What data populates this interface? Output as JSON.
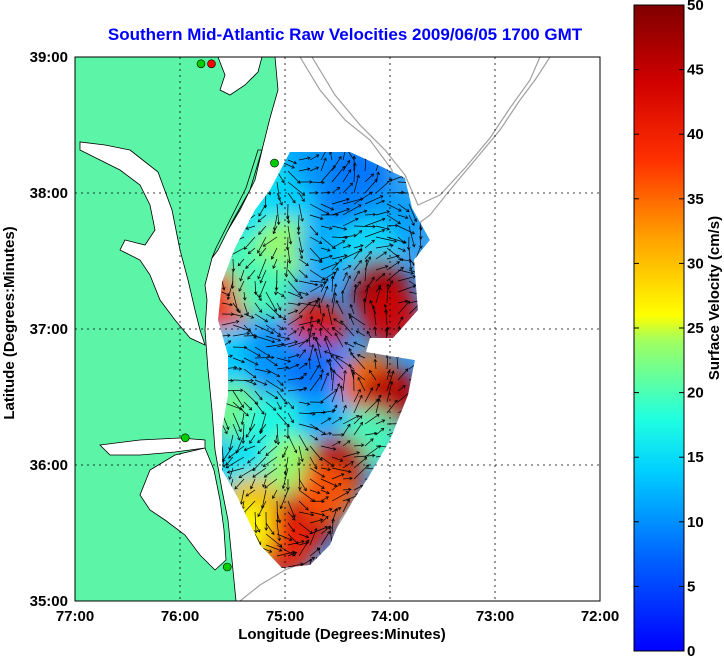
{
  "chart_data": {
    "type": "heatmap",
    "title": "Southern Mid-Atlantic Raw Velocities 2009/06/05 1700 GMT",
    "xlabel": "Longitude (Degrees:Minutes)",
    "ylabel": "Latitude (Degrees:Minutes)",
    "x_ticks": [
      "77:00",
      "76:00",
      "75:00",
      "74:00",
      "73:00",
      "72:00"
    ],
    "y_ticks": [
      "39:00",
      "38:00",
      "37:00",
      "36:00",
      "35:00"
    ],
    "xlim": [
      -77,
      -72
    ],
    "ylim": [
      35,
      39
    ],
    "grid": true,
    "colorbar": {
      "label": "Surface Velocity (cm/s)",
      "min": 0,
      "max": 50,
      "ticks": [
        "0",
        "5",
        "10",
        "15",
        "20",
        "25",
        "30",
        "35",
        "40",
        "45",
        "50"
      ],
      "colormap": [
        "#0000ff",
        "#0080ff",
        "#00ffff",
        "#80ff80",
        "#ffff00",
        "#ff8000",
        "#ff0000",
        "#800000"
      ]
    },
    "field_cells": [
      {
        "lon": -74.9,
        "lat": 38.3,
        "v": 12
      },
      {
        "lon": -74.6,
        "lat": 38.2,
        "v": 10
      },
      {
        "lon": -74.3,
        "lat": 38.1,
        "v": 8
      },
      {
        "lon": -75.2,
        "lat": 38.0,
        "v": 18
      },
      {
        "lon": -75.0,
        "lat": 37.9,
        "v": 14
      },
      {
        "lon": -74.4,
        "lat": 37.9,
        "v": 9
      },
      {
        "lon": -74.0,
        "lat": 37.8,
        "v": 11
      },
      {
        "lon": -75.4,
        "lat": 37.8,
        "v": 16
      },
      {
        "lon": -75.5,
        "lat": 37.5,
        "v": 20
      },
      {
        "lon": -75.0,
        "lat": 37.6,
        "v": 24
      },
      {
        "lon": -74.6,
        "lat": 37.6,
        "v": 12
      },
      {
        "lon": -74.2,
        "lat": 37.6,
        "v": 15
      },
      {
        "lon": -75.6,
        "lat": 37.2,
        "v": 38
      },
      {
        "lon": -75.2,
        "lat": 37.3,
        "v": 20
      },
      {
        "lon": -74.7,
        "lat": 37.0,
        "v": 42
      },
      {
        "lon": -74.1,
        "lat": 37.3,
        "v": 48
      },
      {
        "lon": -74.0,
        "lat": 37.1,
        "v": 44
      },
      {
        "lon": -75.5,
        "lat": 36.8,
        "v": 14
      },
      {
        "lon": -75.1,
        "lat": 36.8,
        "v": 10
      },
      {
        "lon": -74.7,
        "lat": 36.7,
        "v": 8
      },
      {
        "lon": -74.2,
        "lat": 36.6,
        "v": 35
      },
      {
        "lon": -74.0,
        "lat": 36.5,
        "v": 46
      },
      {
        "lon": -75.5,
        "lat": 36.4,
        "v": 22
      },
      {
        "lon": -75.1,
        "lat": 36.3,
        "v": 18
      },
      {
        "lon": -74.6,
        "lat": 36.3,
        "v": 12
      },
      {
        "lon": -74.2,
        "lat": 36.2,
        "v": 20
      },
      {
        "lon": -75.4,
        "lat": 36.0,
        "v": 16
      },
      {
        "lon": -74.9,
        "lat": 36.0,
        "v": 24
      },
      {
        "lon": -74.5,
        "lat": 36.0,
        "v": 46
      },
      {
        "lon": -75.3,
        "lat": 35.7,
        "v": 30
      },
      {
        "lon": -74.8,
        "lat": 35.6,
        "v": 44
      },
      {
        "lon": -75.0,
        "lat": 35.4,
        "v": 40
      },
      {
        "lon": -74.6,
        "lat": 35.8,
        "v": 36
      },
      {
        "lon": -75.4,
        "lat": 35.5,
        "v": 26
      }
    ],
    "stations": [
      {
        "lon": -75.8,
        "lat": 38.95,
        "color": "#00cc00"
      },
      {
        "lon": -75.7,
        "lat": 38.95,
        "color": "#ff0000"
      },
      {
        "lon": -75.1,
        "lat": 38.22,
        "color": "#00cc00"
      },
      {
        "lon": -75.95,
        "lat": 36.2,
        "color": "#00cc00"
      },
      {
        "lon": -75.55,
        "lat": 35.25,
        "color": "#00cc00"
      }
    ]
  }
}
